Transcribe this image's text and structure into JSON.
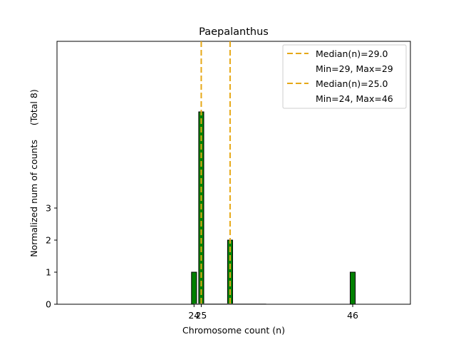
{
  "chart_data": {
    "type": "bar",
    "title": "Paepalanthus",
    "xlabel": "Chromosome count (n)",
    "ylabel": "Normalized num of counts",
    "ylabel_extra": "(Total 8)",
    "xlim": [
      5,
      54
    ],
    "ylim": [
      0,
      8.2
    ],
    "x_ticks": [
      24,
      25,
      46
    ],
    "x_tick_labels": [
      "24",
      "25",
      "46"
    ],
    "y_ticks": [
      0,
      1,
      2,
      3
    ],
    "y_tick_labels": [
      "0",
      "1",
      "2",
      "3"
    ],
    "bar_width": 0.7,
    "bars": [
      {
        "x": 24,
        "value": 1
      },
      {
        "x": 25,
        "value": 6
      },
      {
        "x": 29,
        "value": 2
      },
      {
        "x": 46,
        "value": 1
      }
    ],
    "series_underline": {
      "from": 24,
      "to": 34
    },
    "median_lines": [
      {
        "x": 29,
        "label": "Median(n)=29.0",
        "range_label": "Min=29, Max=29"
      },
      {
        "x": 25,
        "label": "Median(n)=25.0",
        "range_label": "Min=24, Max=46"
      }
    ],
    "colors": {
      "bar_fill": "#008000",
      "bar_edge": "#000000",
      "median": "#E6A817"
    }
  }
}
